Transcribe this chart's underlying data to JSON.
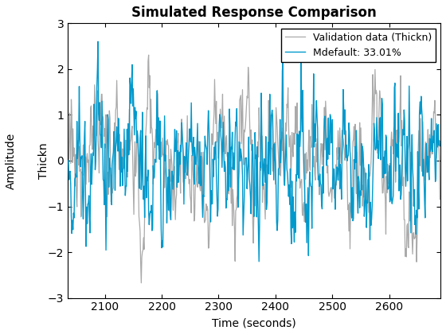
{
  "title": "Simulated Response Comparison",
  "xlabel": "Time (seconds)",
  "ylabel_outer": "Amplitude",
  "ylabel_inner": "Thickn",
  "legend1": "Validation data (Thickn)",
  "legend2": "Mdefault: 33.01%",
  "color_val": "#aaaaaa",
  "color_mod": "#0099cc",
  "xlim": [
    2035,
    2690
  ],
  "ylim": [
    -3,
    3
  ],
  "yticks": [
    -3,
    -2,
    -1,
    0,
    1,
    2,
    3
  ],
  "xticks": [
    2100,
    2200,
    2300,
    2400,
    2500,
    2600
  ],
  "t_start": 2036,
  "t_end": 2690,
  "dt": 1.0,
  "figsize": [
    5.6,
    4.2
  ],
  "dpi": 100,
  "title_fontsize": 12,
  "label_fontsize": 10,
  "tick_fontsize": 10,
  "legend_fontsize": 9,
  "linewidth_val": 0.9,
  "linewidth_mod": 1.0
}
